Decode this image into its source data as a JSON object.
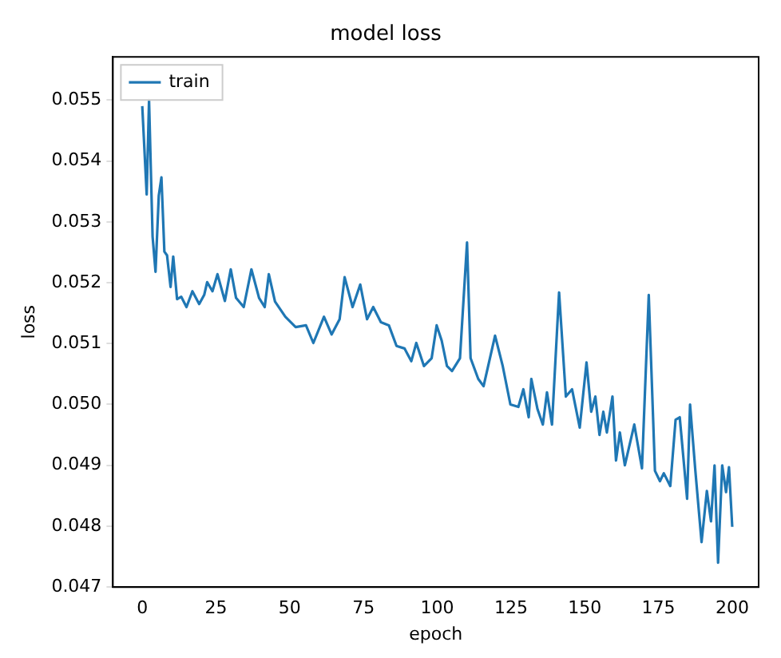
{
  "chart_data": {
    "type": "line",
    "title": "model loss",
    "xlabel": "epoch",
    "ylabel": "loss",
    "legend": "top left",
    "grid": false,
    "marker": "none",
    "line_style": "solid",
    "xlim": [
      -9.95,
      208.95
    ],
    "xticks": [
      0,
      25,
      50,
      75,
      100,
      125,
      150,
      175,
      200
    ],
    "ylim": [
      0.047,
      0.05571
    ],
    "yticks": [
      0.047,
      0.048,
      0.049,
      {
        "value": 0.05,
        "label": "0.050"
      },
      0.051,
      0.052,
      0.053,
      0.054,
      0.055
    ],
    "series": [
      {
        "name": "train",
        "color": "#1f77b4",
        "x": [
          0,
          1.5,
          2.3,
          3.5,
          4.5,
          5.6,
          6.5,
          7.5,
          8.4,
          9.6,
          10.5,
          11.8,
          13.2,
          15,
          17,
          19.3,
          21,
          22,
          23.8,
          25.5,
          28,
          30,
          31.8,
          34.4,
          37,
          39.6,
          41.5,
          42.9,
          45,
          48.5,
          52,
          55.5,
          58,
          61.6,
          64.2,
          66.9,
          68.6,
          71.3,
          73.9,
          76.2,
          78.3,
          80.9,
          83.6,
          86.2,
          88.9,
          91.2,
          92.9,
          95.5,
          98.1,
          99.8,
          101.5,
          103.3,
          105,
          107.7,
          110.1,
          111.3,
          113.9,
          115.7,
          119.6,
          122.2,
          124.8,
          127.5,
          129.2,
          131,
          131.9,
          134,
          135.8,
          137.2,
          138.9,
          141.3,
          143.6,
          145.7,
          148.3,
          150.6,
          152.2,
          153.6,
          155,
          156.3,
          157.5,
          159.4,
          160.6,
          161.9,
          163.6,
          166.8,
          169.4,
          171.7,
          173.8,
          175.5,
          176.8,
          179,
          180.8,
          182.2,
          184.7,
          185.7,
          187.5,
          189.6,
          191.4,
          192.8,
          194,
          195.2,
          196.6,
          197.9,
          198.9,
          200
        ],
        "values": [
          0.0549,
          0.05345,
          0.055,
          0.05276,
          0.05218,
          0.05343,
          0.05373,
          0.05251,
          0.05245,
          0.05193,
          0.05243,
          0.05173,
          0.05177,
          0.0516,
          0.05186,
          0.05165,
          0.0518,
          0.05201,
          0.05186,
          0.05214,
          0.0517,
          0.05222,
          0.05175,
          0.0516,
          0.05222,
          0.05175,
          0.0516,
          0.05214,
          0.05169,
          0.05144,
          0.05127,
          0.0513,
          0.05101,
          0.05144,
          0.05115,
          0.0514,
          0.05209,
          0.0516,
          0.05197,
          0.0514,
          0.0516,
          0.05135,
          0.0513,
          0.05096,
          0.05092,
          0.05071,
          0.05101,
          0.05063,
          0.05076,
          0.0513,
          0.05105,
          0.05063,
          0.05055,
          0.05076,
          0.05266,
          0.05076,
          0.05042,
          0.0503,
          0.05113,
          0.05063,
          0.05,
          0.04996,
          0.05025,
          0.04979,
          0.05042,
          0.04992,
          0.04967,
          0.0502,
          0.04967,
          0.05184,
          0.05013,
          0.05025,
          0.04962,
          0.05069,
          0.04988,
          0.05013,
          0.0495,
          0.04988,
          0.04954,
          0.05013,
          0.04908,
          0.04954,
          0.049,
          0.04967,
          0.04895,
          0.0518,
          0.04891,
          0.04874,
          0.04887,
          0.04866,
          0.04975,
          0.04979,
          0.04845,
          0.05,
          0.04891,
          0.04774,
          0.04858,
          0.04808,
          0.049,
          0.0474,
          0.049,
          0.04856,
          0.04897,
          0.04799
        ]
      }
    ]
  }
}
